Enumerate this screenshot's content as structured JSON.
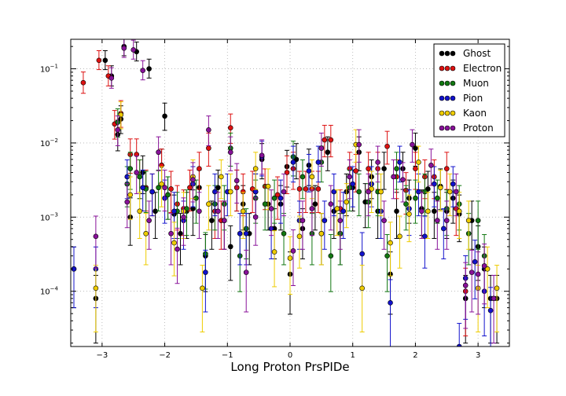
{
  "chart_data": {
    "type": "scatter",
    "xlabel": "Long Proton PrsPIDe",
    "ylabel": "",
    "xlim": [
      -3.5,
      3.5
    ],
    "ylim": [
      1.8e-05,
      0.25
    ],
    "yscale": "log",
    "grid": true,
    "legend_position": "top-right",
    "x_ticks": [
      {
        "v": -3,
        "label": "−3"
      },
      {
        "v": -2,
        "label": "−2"
      },
      {
        "v": -1,
        "label": "−1"
      },
      {
        "v": 0,
        "label": "0"
      },
      {
        "v": 1,
        "label": "1"
      },
      {
        "v": 2,
        "label": "2"
      },
      {
        "v": 3,
        "label": "3"
      }
    ],
    "y_ticks": [
      {
        "v": 0.0001,
        "base": "10",
        "exp": "-4"
      },
      {
        "v": 0.001,
        "base": "10",
        "exp": "-3"
      },
      {
        "v": 0.01,
        "base": "10",
        "exp": "-2"
      },
      {
        "v": 0.1,
        "base": "10",
        "exp": "-1"
      }
    ],
    "series": [
      {
        "name": "Ghost",
        "color": "#000000",
        "points": [
          [
            -3.45,
            0.0002
          ],
          [
            -3.1,
            8e-05
          ],
          [
            -2.95,
            0.13
          ],
          [
            -2.85,
            0.08
          ],
          [
            -2.75,
            0.013
          ],
          [
            -2.7,
            0.021
          ],
          [
            -2.65,
            0.2
          ],
          [
            -2.55,
            0.001
          ],
          [
            -2.45,
            0.17
          ],
          [
            -2.35,
            0.004
          ],
          [
            -2.25,
            0.1
          ],
          [
            -2.15,
            0.0012
          ],
          [
            -2.05,
            0.005
          ],
          [
            -2.0,
            0.023
          ],
          [
            -1.95,
            0.002
          ],
          [
            -1.85,
            0.0011
          ],
          [
            -1.75,
            0.0006
          ],
          [
            -1.65,
            0.0012
          ],
          [
            -1.55,
            0.0013
          ],
          [
            -1.45,
            0.0025
          ],
          [
            -1.35,
            0.0003
          ],
          [
            -1.25,
            0.0009
          ],
          [
            -1.15,
            0.0025
          ],
          [
            -1.05,
            0.0009
          ],
          [
            -0.95,
            0.0004
          ],
          [
            -0.85,
            0.0025
          ],
          [
            -0.75,
            0.0015
          ],
          [
            -0.65,
            0.0006
          ],
          [
            -0.55,
            0.0022
          ],
          [
            -0.45,
            0.006
          ],
          [
            -0.35,
            0.0015
          ],
          [
            -0.25,
            0.0007
          ],
          [
            -0.15,
            0.0015
          ],
          [
            -0.05,
            0.0048
          ],
          [
            0.0,
            0.00017
          ],
          [
            0.1,
            0.006
          ],
          [
            0.2,
            0.0007
          ],
          [
            0.3,
            0.005
          ],
          [
            0.4,
            0.0015
          ],
          [
            0.5,
            0.0006
          ],
          [
            0.6,
            0.0075
          ],
          [
            0.7,
            0.0012
          ],
          [
            0.8,
            0.0006
          ],
          [
            0.9,
            0.0022
          ],
          [
            1.0,
            0.0025
          ],
          [
            1.1,
            0.0075
          ],
          [
            1.2,
            0.0016
          ],
          [
            1.3,
            0.0035
          ],
          [
            1.4,
            0.0012
          ],
          [
            1.5,
            0.0045
          ],
          [
            1.6,
            0.00017
          ],
          [
            1.7,
            0.0012
          ],
          [
            1.8,
            0.0045
          ],
          [
            1.9,
            0.0018
          ],
          [
            2.0,
            0.0085
          ],
          [
            2.1,
            0.0013
          ],
          [
            2.2,
            0.0024
          ],
          [
            2.3,
            0.0012
          ],
          [
            2.4,
            0.0026
          ],
          [
            2.5,
            0.0012
          ],
          [
            2.6,
            0.0018
          ],
          [
            2.7,
            0.0011
          ],
          [
            2.8,
            8e-05
          ],
          [
            2.9,
            0.0009
          ],
          [
            3.0,
            0.0004
          ],
          [
            3.1,
            0.0002
          ],
          [
            3.2,
            8e-05
          ],
          [
            3.3,
            8e-05
          ]
        ]
      },
      {
        "name": "Electron",
        "color": "#dd1111",
        "points": [
          [
            -3.3,
            0.065
          ],
          [
            -3.05,
            0.13
          ],
          [
            -2.9,
            0.08
          ],
          [
            -2.8,
            0.018
          ],
          [
            -2.7,
            0.025
          ],
          [
            -2.55,
            0.007
          ],
          [
            -2.45,
            0.007
          ],
          [
            -2.4,
            0.0035
          ],
          [
            -2.3,
            0.0025
          ],
          [
            -2.2,
            0.0022
          ],
          [
            -2.05,
            0.005
          ],
          [
            -1.9,
            0.0024
          ],
          [
            -1.8,
            0.0015
          ],
          [
            -1.7,
            0.0013
          ],
          [
            -1.6,
            0.0025
          ],
          [
            -1.45,
            0.0045
          ],
          [
            -1.3,
            0.0085
          ],
          [
            -1.2,
            0.0012
          ],
          [
            -1.1,
            0.0009
          ],
          [
            -0.95,
            0.016
          ],
          [
            -0.85,
            0.0025
          ],
          [
            -0.75,
            0.0022
          ],
          [
            -0.6,
            0.0024
          ],
          [
            -0.4,
            0.0026
          ],
          [
            -0.2,
            0.002
          ],
          [
            -0.05,
            0.004
          ],
          [
            0.05,
            0.0045
          ],
          [
            0.15,
            0.0024
          ],
          [
            0.25,
            0.0024
          ],
          [
            0.35,
            0.0024
          ],
          [
            0.45,
            0.0024
          ],
          [
            0.55,
            0.011
          ],
          [
            0.65,
            0.011
          ],
          [
            0.8,
            0.0013
          ],
          [
            0.95,
            0.0045
          ],
          [
            1.05,
            0.0042
          ],
          [
            1.25,
            0.0045
          ],
          [
            1.4,
            0.0045
          ],
          [
            1.55,
            0.009
          ],
          [
            1.7,
            0.0035
          ],
          [
            1.85,
            0.0023
          ],
          [
            2.0,
            0.0045
          ],
          [
            2.15,
            0.0035
          ],
          [
            2.3,
            0.0035
          ],
          [
            2.5,
            0.0045
          ],
          [
            2.65,
            0.0013
          ],
          [
            2.8,
            0.0001
          ]
        ]
      },
      {
        "name": "Muon",
        "color": "#117711",
        "points": [
          [
            -2.75,
            0.019
          ],
          [
            -2.6,
            0.0028
          ],
          [
            -2.55,
            0.0045
          ],
          [
            -2.4,
            0.0035
          ],
          [
            -2.3,
            0.0024
          ],
          [
            -2.1,
            0.0025
          ],
          [
            -1.95,
            0.002
          ],
          [
            -1.8,
            0.0012
          ],
          [
            -1.65,
            0.0013
          ],
          [
            -1.5,
            0.0018
          ],
          [
            -1.35,
            0.00032
          ],
          [
            -1.2,
            0.0015
          ],
          [
            -1.05,
            0.0015
          ],
          [
            -0.95,
            0.0085
          ],
          [
            -0.8,
            0.0003
          ],
          [
            -0.7,
            0.0007
          ],
          [
            -0.55,
            0.0018
          ],
          [
            -0.4,
            0.0015
          ],
          [
            -0.25,
            0.0018
          ],
          [
            -0.1,
            0.0006
          ],
          [
            0.05,
            0.0065
          ],
          [
            0.2,
            0.0035
          ],
          [
            0.35,
            0.0006
          ],
          [
            0.5,
            0.0055
          ],
          [
            0.65,
            0.0003
          ],
          [
            0.8,
            0.0006
          ],
          [
            0.95,
            0.0025
          ],
          [
            1.1,
            0.0022
          ],
          [
            1.25,
            0.0016
          ],
          [
            1.4,
            0.0022
          ],
          [
            1.55,
            0.0003
          ],
          [
            1.7,
            0.0045
          ],
          [
            1.85,
            0.0015
          ],
          [
            2.0,
            0.0018
          ],
          [
            2.15,
            0.0022
          ],
          [
            2.35,
            0.0018
          ],
          [
            2.5,
            0.0013
          ],
          [
            2.7,
            0.0015
          ],
          [
            2.85,
            0.0006
          ],
          [
            3.0,
            0.0009
          ],
          [
            3.1,
            0.0003
          ]
        ]
      },
      {
        "name": "Pion",
        "color": "#1111cc",
        "points": [
          [
            -3.45,
            0.0002
          ],
          [
            -3.1,
            0.0002
          ],
          [
            -2.6,
            0.0035
          ],
          [
            -2.35,
            0.0025
          ],
          [
            -2.2,
            0.0022
          ],
          [
            -2.0,
            0.0018
          ],
          [
            -1.85,
            0.0012
          ],
          [
            -1.7,
            0.0009
          ],
          [
            -1.55,
            0.0028
          ],
          [
            -1.35,
            0.00018
          ],
          [
            -1.2,
            0.0022
          ],
          [
            -1.0,
            0.0022
          ],
          [
            -0.8,
            0.0006
          ],
          [
            -0.7,
            0.0006
          ],
          [
            -0.55,
            0.0022
          ],
          [
            -0.45,
            0.0065
          ],
          [
            -0.3,
            0.0007
          ],
          [
            -0.15,
            0.0018
          ],
          [
            0.05,
            0.0055
          ],
          [
            0.15,
            0.0009
          ],
          [
            0.3,
            0.0042
          ],
          [
            0.45,
            0.0055
          ],
          [
            0.55,
            0.0009
          ],
          [
            0.7,
            0.0022
          ],
          [
            0.85,
            0.0012
          ],
          [
            1.0,
            0.0028
          ],
          [
            1.15,
            0.00032
          ],
          [
            1.3,
            0.0028
          ],
          [
            1.45,
            0.0012
          ],
          [
            1.6,
            7e-05
          ],
          [
            1.75,
            0.0055
          ],
          [
            1.9,
            0.0013
          ],
          [
            2.05,
            0.0022
          ],
          [
            2.15,
            0.00055
          ],
          [
            2.3,
            0.0028
          ],
          [
            2.45,
            0.0007
          ],
          [
            2.6,
            0.0028
          ],
          [
            2.7,
            1.8e-05
          ],
          [
            2.8,
            0.00015
          ],
          [
            2.95,
            0.00025
          ],
          [
            3.1,
            0.0001
          ],
          [
            3.2,
            5.5e-05
          ]
        ]
      },
      {
        "name": "Kaon",
        "color": "#eecc00",
        "points": [
          [
            -3.1,
            0.00011
          ],
          [
            -2.7,
            0.024
          ],
          [
            -2.55,
            0.002
          ],
          [
            -2.4,
            0.0012
          ],
          [
            -2.3,
            0.0006
          ],
          [
            -2.05,
            0.0028
          ],
          [
            -1.85,
            0.00045
          ],
          [
            -1.7,
            0.0012
          ],
          [
            -1.55,
            0.0035
          ],
          [
            -1.4,
            0.00011
          ],
          [
            -1.3,
            0.0015
          ],
          [
            -1.1,
            0.0035
          ],
          [
            -0.95,
            0.0022
          ],
          [
            -0.75,
            0.0012
          ],
          [
            -0.55,
            0.0045
          ],
          [
            -0.35,
            0.0026
          ],
          [
            -0.25,
            0.00034
          ],
          [
            0.0,
            0.00028
          ],
          [
            0.15,
            0.00055
          ],
          [
            0.35,
            0.0035
          ],
          [
            0.5,
            0.0006
          ],
          [
            0.75,
            0.0013
          ],
          [
            0.9,
            0.0016
          ],
          [
            1.05,
            0.0095
          ],
          [
            1.15,
            0.00011
          ],
          [
            1.3,
            0.0024
          ],
          [
            1.45,
            0.0022
          ],
          [
            1.6,
            0.00045
          ],
          [
            1.75,
            0.00055
          ],
          [
            1.9,
            0.0011
          ],
          [
            2.05,
            0.0055
          ],
          [
            2.2,
            0.0012
          ],
          [
            2.4,
            0.0025
          ],
          [
            2.55,
            0.0022
          ],
          [
            2.7,
            0.0012
          ],
          [
            2.85,
            0.0009
          ],
          [
            3.0,
            0.00011
          ],
          [
            3.15,
            0.0002
          ],
          [
            3.3,
            0.00011
          ]
        ]
      },
      {
        "name": "Proton",
        "color": "#881199",
        "points": [
          [
            -3.1,
            0.00055
          ],
          [
            -2.85,
            0.075
          ],
          [
            -2.75,
            0.015
          ],
          [
            -2.65,
            0.19
          ],
          [
            -2.6,
            0.0016
          ],
          [
            -2.5,
            0.18
          ],
          [
            -2.45,
            0.004
          ],
          [
            -2.35,
            0.095
          ],
          [
            -2.25,
            0.0009
          ],
          [
            -2.1,
            0.0075
          ],
          [
            -2.0,
            0.0025
          ],
          [
            -1.9,
            0.0006
          ],
          [
            -1.8,
            0.00037
          ],
          [
            -1.7,
            0.001
          ],
          [
            -1.55,
            0.0032
          ],
          [
            -1.45,
            0.0012
          ],
          [
            -1.3,
            0.015
          ],
          [
            -1.15,
            0.0012
          ],
          [
            -1.05,
            0.0009
          ],
          [
            -0.95,
            0.0075
          ],
          [
            -0.85,
            0.0031
          ],
          [
            -0.7,
            0.00018
          ],
          [
            -0.55,
            0.001
          ],
          [
            -0.45,
            0.0068
          ],
          [
            -0.3,
            0.0013
          ],
          [
            -0.1,
            0.0022
          ],
          [
            0.05,
            0.00035
          ],
          [
            0.2,
            0.0009
          ],
          [
            0.35,
            0.0013
          ],
          [
            0.5,
            0.0085
          ],
          [
            0.65,
            0.0015
          ],
          [
            0.8,
            0.0009
          ],
          [
            0.95,
            0.0035
          ],
          [
            1.1,
            0.0095
          ],
          [
            1.25,
            0.0022
          ],
          [
            1.4,
            0.0055
          ],
          [
            1.5,
            0.0009
          ],
          [
            1.65,
            0.0035
          ],
          [
            1.8,
            0.0032
          ],
          [
            1.95,
            0.0095
          ],
          [
            2.1,
            0.0012
          ],
          [
            2.25,
            0.005
          ],
          [
            2.35,
            0.0009
          ],
          [
            2.5,
            0.0009
          ],
          [
            2.65,
            0.0022
          ],
          [
            2.8,
            0.00012
          ],
          [
            2.9,
            0.00018
          ],
          [
            3.0,
            0.00017
          ],
          [
            3.1,
            0.00022
          ],
          [
            3.25,
            8e-05
          ]
        ]
      }
    ]
  }
}
